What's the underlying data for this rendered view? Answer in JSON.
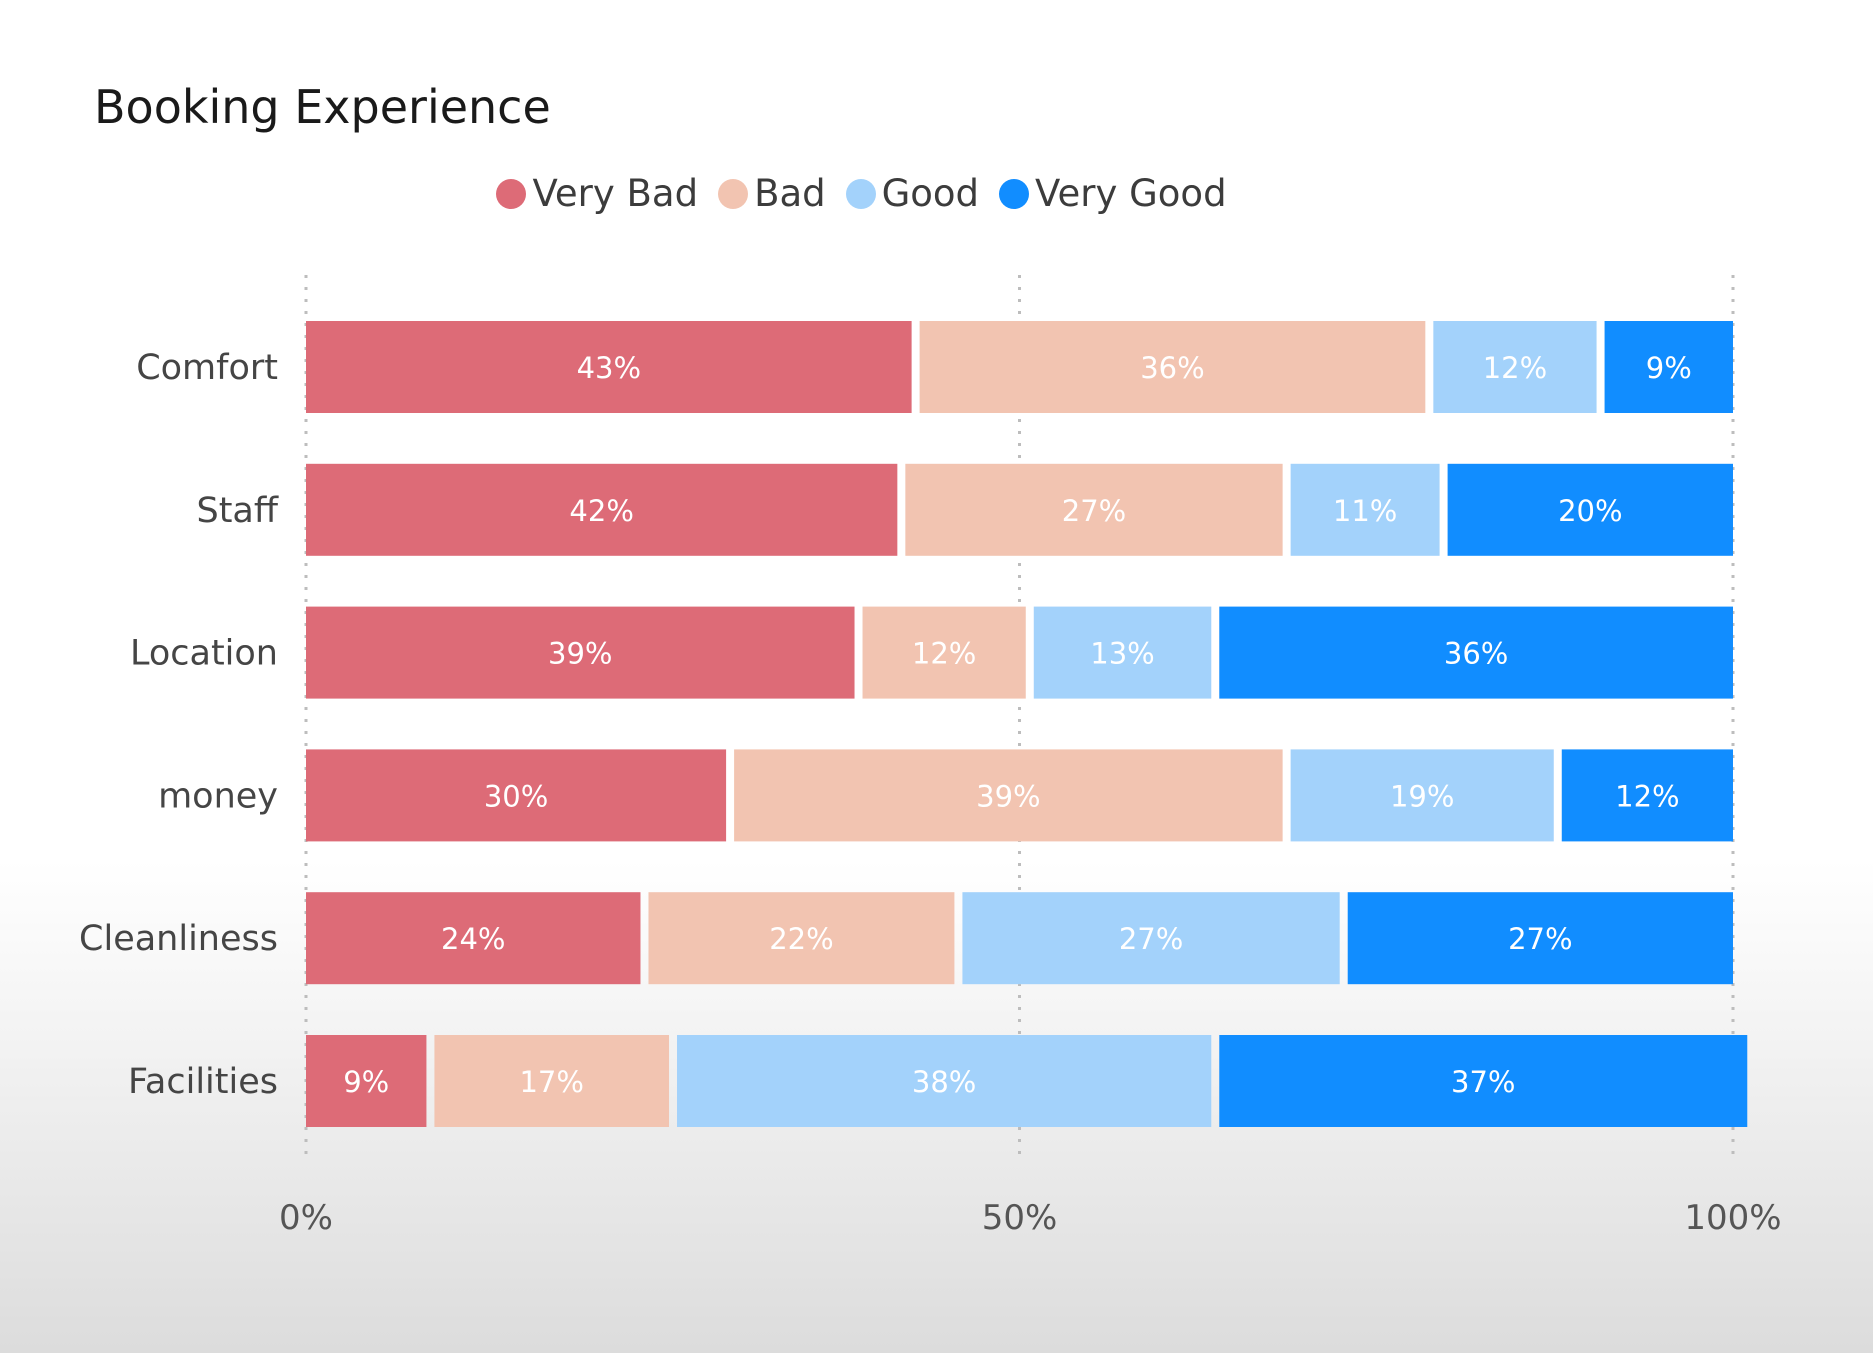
{
  "title": "Booking Experience",
  "chart_data": {
    "type": "bar",
    "orientation": "horizontal",
    "stacked": "percent",
    "title": "Booking Experience",
    "categories": [
      "Comfort",
      "Staff",
      "Location",
      "money",
      "Cleanliness",
      "Facilities"
    ],
    "series": [
      {
        "name": "Very Bad",
        "color": "#dd6b77",
        "values": [
          43,
          42,
          39,
          30,
          24,
          9
        ],
        "labels": [
          "43%",
          "42%",
          "39%",
          "30%",
          "24%",
          "9%"
        ]
      },
      {
        "name": "Bad",
        "color": "#f2c4b1",
        "values": [
          36,
          27,
          12,
          39,
          22,
          17
        ],
        "labels": [
          "36%",
          "27%",
          "12%",
          "39%",
          "22%",
          "17%"
        ]
      },
      {
        "name": "Good",
        "color": "#a3d2fb",
        "values": [
          12,
          11,
          13,
          19,
          27,
          38
        ],
        "labels": [
          "12%",
          "11%",
          "13%",
          "19%",
          "27%",
          "38%"
        ]
      },
      {
        "name": "Very Good",
        "color": "#118dff",
        "values": [
          9,
          20,
          36,
          12,
          27,
          37
        ],
        "labels": [
          "9%",
          "20%",
          "36%",
          "12%",
          "27%",
          "37%"
        ]
      }
    ],
    "x_ticks": [
      "0%",
      "50%",
      "100%"
    ],
    "xlim": [
      0,
      100
    ],
    "grid": "vertical dotted",
    "legend_position": "top-center"
  }
}
